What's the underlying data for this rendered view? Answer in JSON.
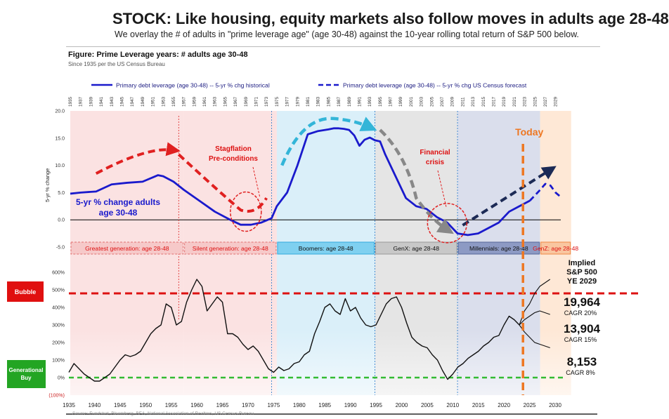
{
  "header": {
    "title": "STOCK: Like housing, equity markets also follow moves in adults age 28-48",
    "subtitle": "We overlay the # of adults in \"prime leverage age\" (age 30-48) against the 10-year rolling total return of S&P 500 below."
  },
  "figure": {
    "title": "Figure: Prime Leverage years:  # adults age 30-48",
    "source_note": "Since 1935 per the US Census Bureau",
    "footer_source": "Source: Fundstrat, Bloomberg, BEA, National Association of Realtors, US Census Bureau"
  },
  "colors": {
    "historical": "#1a1acc",
    "forecast": "#1a1acc",
    "red_arrow": "#e02020",
    "cyan_arrow": "#33b5d8",
    "gray_arrow": "#888888",
    "navy_arrow": "#1c2a55",
    "today_line": "#ee7722",
    "bubble_line": "#dd1111",
    "buy_line": "#33bb33"
  },
  "chart_data": [
    {
      "type": "line",
      "ylabel": "5-yr % change",
      "ylim": [
        -5,
        20
      ],
      "yticks": [
        "20.0",
        "15.0",
        "10.0",
        "5.0",
        "0.0",
        "-5.0"
      ],
      "xticks": [
        "1935",
        "1937",
        "1939",
        "1941",
        "1943",
        "1945",
        "1947",
        "1949",
        "1951",
        "1953",
        "1955",
        "1957",
        "1959",
        "1961",
        "1963",
        "1965",
        "1967",
        "1969",
        "1971",
        "1973",
        "1975",
        "1977",
        "1979",
        "1981",
        "1983",
        "1985",
        "1987",
        "1989",
        "1991",
        "1993",
        "1995",
        "1997",
        "1999",
        "2001",
        "2003",
        "2005",
        "2007",
        "2009",
        "2011",
        "2013",
        "2015",
        "2017",
        "2019",
        "2021",
        "2023",
        "2025",
        "2027",
        "2029"
      ],
      "legend": [
        {
          "name": "Primary debt leverage (age 30-48) -- 5-yr % chg historical",
          "style": "solid"
        },
        {
          "name": "Primary debt leverage (age 30-48) -- 5-yr % chg US Census forecast",
          "style": "dashed"
        }
      ],
      "series": [
        {
          "name": "Primary debt leverage (age 30-48) -- 5-yr % chg historical",
          "style": "solid",
          "x": [
            1935,
            1937,
            1940,
            1943,
            1946,
            1949,
            1951,
            1952,
            1953,
            1955,
            1957,
            1960,
            1963,
            1966,
            1968,
            1970,
            1972,
            1974,
            1975,
            1977,
            1979,
            1981,
            1983,
            1985,
            1986,
            1987,
            1988,
            1989,
            1990,
            1991,
            1992,
            1993,
            1994,
            1995,
            1996,
            1998,
            2000,
            2002,
            2004,
            2006,
            2008,
            2010,
            2012,
            2014,
            2016,
            2018,
            2020,
            2022,
            2024
          ],
          "y": [
            4.8,
            5.0,
            5.2,
            6.5,
            6.8,
            7.0,
            7.8,
            8.2,
            8.0,
            7.0,
            5.5,
            3.5,
            1.5,
            0.0,
            -0.9,
            -0.9,
            -0.5,
            0.3,
            2.5,
            5.0,
            10.0,
            15.7,
            16.3,
            16.6,
            16.8,
            16.8,
            16.7,
            16.5,
            15.5,
            13.6,
            14.7,
            15.1,
            14.6,
            14.4,
            12.0,
            8.0,
            4.0,
            2.5,
            2.0,
            0.5,
            -0.5,
            -2.5,
            -2.8,
            -2.5,
            -1.5,
            -0.5,
            1.5,
            2.5,
            3.5
          ]
        },
        {
          "name": "Primary debt leverage (age 30-48) -- 5-yr % chg US Census forecast",
          "style": "dashed",
          "x": [
            2024,
            2026,
            2027,
            2028,
            2029,
            2030
          ],
          "y": [
            3.5,
            5.5,
            6.6,
            6.3,
            5.0,
            4.2
          ]
        }
      ],
      "annotations": [
        {
          "text": "5-yr % change adults age 30-48"
        },
        {
          "text": "Stagflation Pre-conditions"
        },
        {
          "text": "Financial crisis"
        },
        {
          "text": "Today",
          "x": 2022
        }
      ],
      "generations": [
        {
          "label": "Greatest generation: age 28-48",
          "from": 1935,
          "to": 1957
        },
        {
          "label": "Silent generation: age 28-48",
          "from": 1957,
          "to": 1975
        },
        {
          "label": "Boomers: age 28-48",
          "from": 1975,
          "to": 1994
        },
        {
          "label": "GenX: age 28-48",
          "from": 1994,
          "to": 2010
        },
        {
          "label": "Millennials: age 28-48",
          "from": 2010,
          "to": 2026
        },
        {
          "label": "GenZ: age 28-48",
          "from": 2026,
          "to": 2032
        }
      ]
    },
    {
      "type": "line",
      "ylabel": "",
      "ylim": [
        -100,
        600
      ],
      "yticks": [
        "600%",
        "500%",
        "400%",
        "300%",
        "200%",
        "100%",
        "0%",
        "(100%)"
      ],
      "xticks": [
        "1935",
        "1940",
        "1945",
        "1950",
        "1955",
        "1960",
        "1965",
        "1970",
        "1975",
        "1980",
        "1985",
        "1990",
        "1995",
        "2000",
        "2005",
        "2010",
        "2015",
        "2020",
        "2025",
        "2030"
      ],
      "series": [
        {
          "name": "S&P 500 10-year rolling total return",
          "x": [
            1935,
            1936,
            1937,
            1938,
            1939,
            1940,
            1941,
            1942,
            1943,
            1944,
            1945,
            1946,
            1947,
            1948,
            1949,
            1950,
            1951,
            1952,
            1953,
            1954,
            1955,
            1956,
            1957,
            1958,
            1959,
            1960,
            1961,
            1962,
            1963,
            1964,
            1965,
            1966,
            1967,
            1968,
            1969,
            1970,
            1971,
            1972,
            1973,
            1974,
            1975,
            1976,
            1977,
            1978,
            1979,
            1980,
            1981,
            1982,
            1983,
            1984,
            1985,
            1986,
            1987,
            1988,
            1989,
            1990,
            1991,
            1992,
            1993,
            1994,
            1995,
            1996,
            1997,
            1998,
            1999,
            2000,
            2001,
            2002,
            2003,
            2004,
            2005,
            2006,
            2007,
            2008,
            2009,
            2010,
            2011,
            2012,
            2013,
            2014,
            2015,
            2016,
            2017,
            2018,
            2019,
            2020,
            2021,
            2022,
            2023
          ],
          "y": [
            30,
            80,
            50,
            20,
            0,
            -20,
            -20,
            0,
            20,
            60,
            100,
            130,
            120,
            130,
            150,
            200,
            250,
            280,
            300,
            420,
            400,
            300,
            320,
            430,
            500,
            560,
            520,
            380,
            420,
            460,
            430,
            250,
            250,
            230,
            190,
            160,
            180,
            150,
            100,
            50,
            30,
            60,
            40,
            50,
            80,
            90,
            130,
            150,
            250,
            320,
            400,
            420,
            380,
            360,
            450,
            380,
            400,
            340,
            300,
            290,
            300,
            360,
            420,
            450,
            460,
            400,
            310,
            230,
            200,
            180,
            170,
            130,
            100,
            40,
            -10,
            20,
            60,
            80,
            110,
            130,
            150,
            180,
            200,
            230,
            240,
            300,
            350,
            330,
            300
          ]
        },
        {
          "name": "Implied path 19,964 (CAGR 20%)",
          "x": [
            2023,
            2024,
            2025,
            2026,
            2027,
            2028,
            2029
          ],
          "y": [
            300,
            380,
            420,
            480,
            520,
            540,
            560
          ]
        },
        {
          "name": "Implied path 13,904 (CAGR 15%)",
          "x": [
            2023,
            2024,
            2025,
            2026,
            2027,
            2028,
            2029
          ],
          "y": [
            300,
            330,
            350,
            370,
            380,
            370,
            360
          ]
        },
        {
          "name": "Implied path 8,153 (CAGR 8%)",
          "x": [
            2023,
            2024,
            2025,
            2026,
            2027,
            2028,
            2029
          ],
          "y": [
            300,
            260,
            230,
            200,
            190,
            180,
            170
          ]
        }
      ],
      "reference_lines": [
        {
          "label": "Bubble",
          "y": 480
        },
        {
          "label": "Generational Buy",
          "y": 0
        }
      ],
      "implied_header": [
        "Implied",
        "S&P 500",
        "YE 2029"
      ],
      "implied_values": [
        {
          "value": "19,964",
          "cagr": "CAGR 20%"
        },
        {
          "value": "13,904",
          "cagr": "CAGR 15%"
        },
        {
          "value": "8,153",
          "cagr": "CAGR 8%"
        }
      ]
    }
  ]
}
